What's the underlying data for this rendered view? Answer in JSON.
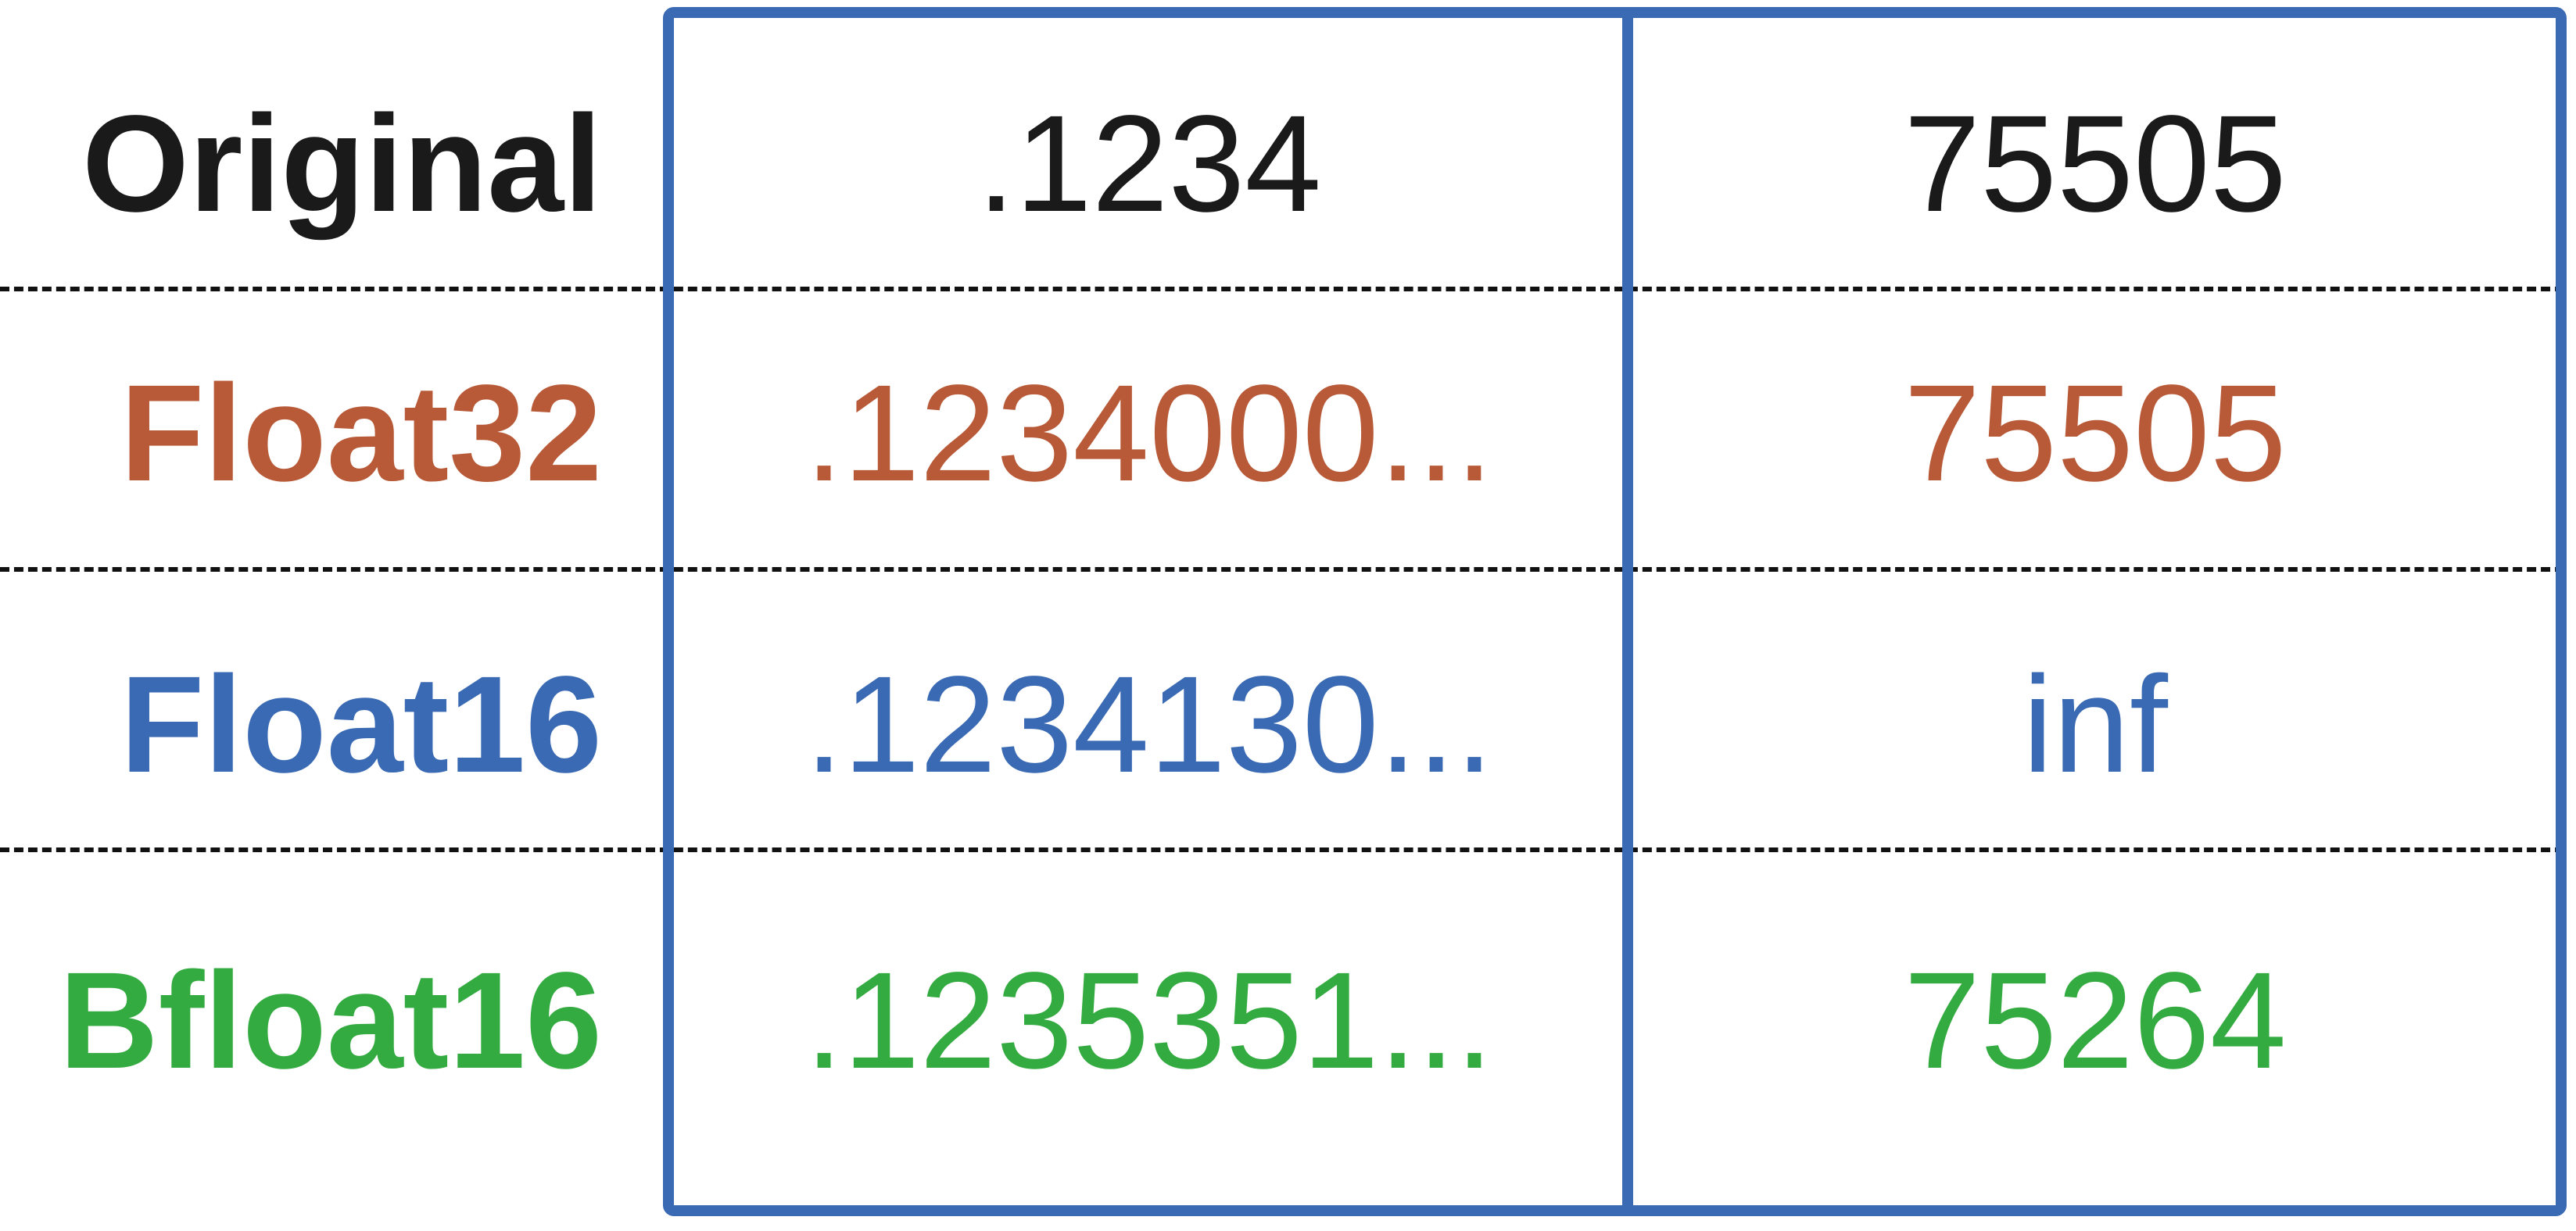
{
  "colors": {
    "original": "#1a1a1a",
    "float32": "#b85a38",
    "float16": "#3a6ab3",
    "bfloat16": "#34ab41",
    "frame": "#3a6ab3",
    "divider": "#111111"
  },
  "rows": [
    {
      "label": "Original",
      "col1": ".1234",
      "col2": "75505"
    },
    {
      "label": "Float32",
      "col1": ".1234000...",
      "col2": "75505"
    },
    {
      "label": "Float16",
      "col1": ".1234130...",
      "col2": "inf"
    },
    {
      "label": "Bfloat16",
      "col1": ".1235351...",
      "col2": "75264"
    }
  ]
}
